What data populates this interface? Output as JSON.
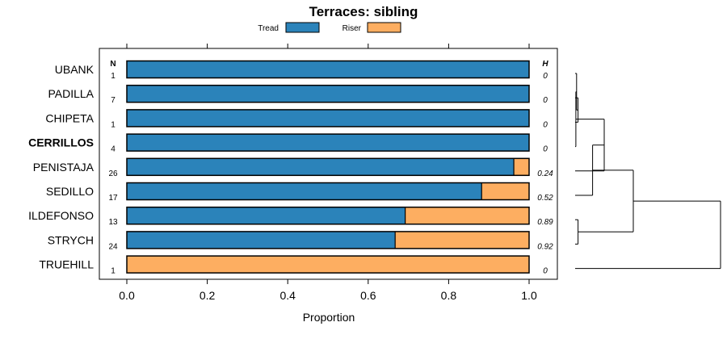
{
  "chart_data": {
    "type": "bar",
    "orientation": "horizontal",
    "stacked": true,
    "title": "Terraces: sibling",
    "xlabel": "Proportion",
    "xlim": [
      0,
      1
    ],
    "xticks": [
      "0.0",
      "0.2",
      "0.4",
      "0.6",
      "0.8",
      "1.0"
    ],
    "legend": [
      {
        "name": "Tread",
        "color": "#2b83ba"
      },
      {
        "name": "Riser",
        "color": "#fdae61"
      }
    ],
    "column_headers": {
      "n": "N",
      "h": "H"
    },
    "categories": [
      "UBANK",
      "PADILLA",
      "CHIPETA",
      "CERRILLOS",
      "PENISTAJA",
      "SEDILLO",
      "ILDEFONSO",
      "STRYCH",
      "TRUEHILL"
    ],
    "highlighted": "CERRILLOS",
    "series": [
      {
        "name": "Tread",
        "values": [
          1.0,
          1.0,
          1.0,
          1.0,
          0.962,
          0.882,
          0.692,
          0.667,
          0.0
        ]
      },
      {
        "name": "Riser",
        "values": [
          0.0,
          0.0,
          0.0,
          0.0,
          0.038,
          0.118,
          0.308,
          0.333,
          1.0
        ]
      }
    ],
    "n": [
      "1",
      "7",
      "1",
      "4",
      "26",
      "17",
      "13",
      "24",
      "1"
    ],
    "h": [
      "0",
      "0",
      "0",
      "0",
      "0.24",
      "0.52",
      "0.89",
      "0.92",
      "0"
    ],
    "dendrogram": {
      "leaves": [
        "UBANK",
        "PADILLA",
        "CHIPETA",
        "CERRILLOS",
        "PENISTAJA",
        "SEDILLO",
        "ILDEFONSO",
        "STRYCH",
        "TRUEHILL"
      ],
      "merges": [
        {
          "a": 1,
          "b": 2,
          "height": 0.02
        },
        {
          "a": 0,
          "b": -1,
          "height": 0.01
        },
        {
          "a": -2,
          "b": 3,
          "height": 0.005
        },
        {
          "a": 6,
          "b": 7,
          "height": 0.02
        },
        {
          "a": -3,
          "b": 4,
          "height": 0.2
        },
        {
          "a": -5,
          "b": 5,
          "height": 0.12
        },
        {
          "a": -6,
          "b": -4,
          "height": 0.4
        },
        {
          "a": -7,
          "b": 8,
          "height": 1.0
        }
      ]
    }
  }
}
